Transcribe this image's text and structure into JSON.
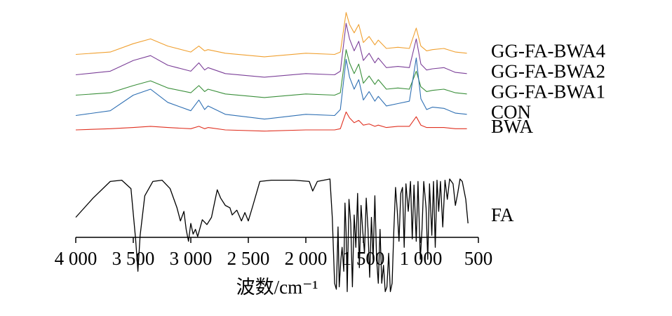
{
  "chart_data": {
    "type": "line",
    "title": "",
    "xlabel": "波数/cm⁻¹",
    "ylabel": "",
    "xlim": [
      4000,
      500
    ],
    "x_reversed": true,
    "y_stacked_offset": true,
    "grid": false,
    "legend": "labels-right-of-curves",
    "ticks": [
      "4 000",
      "3 500",
      "3 000",
      "2 500",
      "2 000",
      "1 500",
      "1 000",
      "500"
    ],
    "tick_values": [
      4000,
      3500,
      3000,
      2500,
      2000,
      1500,
      1000,
      500
    ],
    "series": [
      {
        "name": "GG-FA-BWA4",
        "color": "#f0a030",
        "baseline": 0.78,
        "points": [
          [
            4000,
            0
          ],
          [
            3700,
            0.02
          ],
          [
            3500,
            0.09
          ],
          [
            3350,
            0.13
          ],
          [
            3200,
            0.07
          ],
          [
            3000,
            0.02
          ],
          [
            2930,
            0.07
          ],
          [
            2880,
            0.03
          ],
          [
            2850,
            0.04
          ],
          [
            2700,
            0.01
          ],
          [
            2360,
            -0.02
          ],
          [
            2000,
            0.01
          ],
          [
            1750,
            0.0
          ],
          [
            1700,
            0.02
          ],
          [
            1650,
            0.35
          ],
          [
            1620,
            0.25
          ],
          [
            1580,
            0.18
          ],
          [
            1540,
            0.25
          ],
          [
            1500,
            0.1
          ],
          [
            1450,
            0.15
          ],
          [
            1400,
            0.08
          ],
          [
            1370,
            0.12
          ],
          [
            1300,
            0.05
          ],
          [
            1200,
            0.06
          ],
          [
            1100,
            0.05
          ],
          [
            1040,
            0.22
          ],
          [
            1000,
            0.07
          ],
          [
            950,
            0.03
          ],
          [
            900,
            0.04
          ],
          [
            800,
            0.05
          ],
          [
            700,
            0.02
          ],
          [
            600,
            0.01
          ]
        ]
      },
      {
        "name": "GG-FA-BWA2",
        "color": "#7b3f98",
        "baseline": 0.61,
        "points": [
          [
            4000,
            0
          ],
          [
            3700,
            0.03
          ],
          [
            3500,
            0.12
          ],
          [
            3350,
            0.16
          ],
          [
            3200,
            0.08
          ],
          [
            3000,
            0.03
          ],
          [
            2930,
            0.1
          ],
          [
            2880,
            0.04
          ],
          [
            2850,
            0.06
          ],
          [
            2700,
            0.01
          ],
          [
            2360,
            -0.02
          ],
          [
            2000,
            0.01
          ],
          [
            1750,
            0.0
          ],
          [
            1700,
            0.03
          ],
          [
            1650,
            0.43
          ],
          [
            1620,
            0.3
          ],
          [
            1580,
            0.2
          ],
          [
            1540,
            0.28
          ],
          [
            1500,
            0.12
          ],
          [
            1450,
            0.18
          ],
          [
            1400,
            0.1
          ],
          [
            1370,
            0.14
          ],
          [
            1300,
            0.06
          ],
          [
            1200,
            0.07
          ],
          [
            1100,
            0.06
          ],
          [
            1040,
            0.3
          ],
          [
            1000,
            0.09
          ],
          [
            950,
            0.04
          ],
          [
            900,
            0.05
          ],
          [
            800,
            0.06
          ],
          [
            700,
            0.02
          ],
          [
            600,
            0.01
          ]
        ]
      },
      {
        "name": "GG-FA-BWA1",
        "color": "#3a8f3a",
        "baseline": 0.44,
        "points": [
          [
            4000,
            0
          ],
          [
            3700,
            0.02
          ],
          [
            3500,
            0.08
          ],
          [
            3350,
            0.12
          ],
          [
            3200,
            0.06
          ],
          [
            3000,
            0.02
          ],
          [
            2930,
            0.08
          ],
          [
            2880,
            0.03
          ],
          [
            2850,
            0.05
          ],
          [
            2700,
            0.01
          ],
          [
            2360,
            -0.02
          ],
          [
            2000,
            0.01
          ],
          [
            1750,
            0.0
          ],
          [
            1700,
            0.02
          ],
          [
            1650,
            0.38
          ],
          [
            1620,
            0.27
          ],
          [
            1580,
            0.18
          ],
          [
            1540,
            0.26
          ],
          [
            1500,
            0.1
          ],
          [
            1450,
            0.16
          ],
          [
            1400,
            0.09
          ],
          [
            1370,
            0.13
          ],
          [
            1300,
            0.05
          ],
          [
            1200,
            0.06
          ],
          [
            1100,
            0.05
          ],
          [
            1040,
            0.2
          ],
          [
            1000,
            0.07
          ],
          [
            950,
            0.03
          ],
          [
            900,
            0.04
          ],
          [
            800,
            0.05
          ],
          [
            700,
            0.02
          ],
          [
            600,
            0.01
          ]
        ]
      },
      {
        "name": "CON",
        "color": "#2e6fb3",
        "baseline": 0.27,
        "points": [
          [
            4000,
            0
          ],
          [
            3700,
            0.04
          ],
          [
            3500,
            0.17
          ],
          [
            3350,
            0.22
          ],
          [
            3200,
            0.11
          ],
          [
            3000,
            0.04
          ],
          [
            2930,
            0.13
          ],
          [
            2880,
            0.05
          ],
          [
            2850,
            0.08
          ],
          [
            2700,
            0.01
          ],
          [
            2360,
            -0.03
          ],
          [
            2000,
            0.01
          ],
          [
            1750,
            0.0
          ],
          [
            1700,
            0.05
          ],
          [
            1650,
            0.47
          ],
          [
            1620,
            0.32
          ],
          [
            1580,
            0.22
          ],
          [
            1540,
            0.3
          ],
          [
            1500,
            0.13
          ],
          [
            1450,
            0.2
          ],
          [
            1400,
            0.12
          ],
          [
            1370,
            0.16
          ],
          [
            1300,
            0.08
          ],
          [
            1200,
            0.1
          ],
          [
            1100,
            0.12
          ],
          [
            1040,
            0.48
          ],
          [
            1000,
            0.14
          ],
          [
            950,
            0.05
          ],
          [
            900,
            0.07
          ],
          [
            800,
            0.06
          ],
          [
            700,
            0.02
          ],
          [
            600,
            0.01
          ]
        ]
      },
      {
        "name": "BWA",
        "color": "#e03020",
        "baseline": 0.15,
        "points": [
          [
            4000,
            0
          ],
          [
            3700,
            0.01
          ],
          [
            3500,
            0.02
          ],
          [
            3350,
            0.03
          ],
          [
            3200,
            0.02
          ],
          [
            3000,
            0.01
          ],
          [
            2930,
            0.03
          ],
          [
            2880,
            0.01
          ],
          [
            2850,
            0.02
          ],
          [
            2700,
            0.0
          ],
          [
            2360,
            -0.01
          ],
          [
            2000,
            0.0
          ],
          [
            1750,
            0.0
          ],
          [
            1700,
            0.01
          ],
          [
            1650,
            0.15
          ],
          [
            1620,
            0.1
          ],
          [
            1580,
            0.06
          ],
          [
            1540,
            0.08
          ],
          [
            1500,
            0.04
          ],
          [
            1450,
            0.05
          ],
          [
            1400,
            0.03
          ],
          [
            1370,
            0.04
          ],
          [
            1300,
            0.02
          ],
          [
            1200,
            0.03
          ],
          [
            1100,
            0.03
          ],
          [
            1040,
            0.11
          ],
          [
            1000,
            0.04
          ],
          [
            950,
            0.02
          ],
          [
            900,
            0.02
          ],
          [
            800,
            0.02
          ],
          [
            700,
            0.01
          ],
          [
            600,
            0.01
          ]
        ]
      },
      {
        "name": "FA",
        "color": "#000000",
        "baseline": -0.58,
        "points": [
          [
            4000,
            0.0
          ],
          [
            3850,
            0.16
          ],
          [
            3700,
            0.3
          ],
          [
            3600,
            0.31
          ],
          [
            3520,
            0.24
          ],
          [
            3480,
            -0.18
          ],
          [
            3460,
            -0.45
          ],
          [
            3440,
            -0.15
          ],
          [
            3400,
            0.18
          ],
          [
            3330,
            0.3
          ],
          [
            3250,
            0.31
          ],
          [
            3180,
            0.24
          ],
          [
            3120,
            0.08
          ],
          [
            3090,
            -0.03
          ],
          [
            3060,
            0.05
          ],
          [
            3040,
            -0.1
          ],
          [
            3020,
            -0.2
          ],
          [
            3000,
            -0.05
          ],
          [
            2980,
            -0.14
          ],
          [
            2960,
            -0.1
          ],
          [
            2940,
            -0.16
          ],
          [
            2900,
            -0.02
          ],
          [
            2860,
            -0.06
          ],
          [
            2820,
            0.0
          ],
          [
            2770,
            0.23
          ],
          [
            2740,
            0.16
          ],
          [
            2700,
            0.1
          ],
          [
            2660,
            0.08
          ],
          [
            2640,
            0.02
          ],
          [
            2600,
            0.06
          ],
          [
            2560,
            -0.03
          ],
          [
            2530,
            0.04
          ],
          [
            2500,
            -0.03
          ],
          [
            2460,
            0.1
          ],
          [
            2400,
            0.3
          ],
          [
            2300,
            0.31
          ],
          [
            2100,
            0.31
          ],
          [
            1970,
            0.3
          ],
          [
            1940,
            0.22
          ],
          [
            1900,
            0.3
          ],
          [
            1790,
            0.32
          ],
          [
            1770,
            0.0
          ],
          [
            1750,
            -0.55
          ],
          [
            1735,
            -0.6
          ],
          [
            1720,
            -0.08
          ],
          [
            1710,
            -0.58
          ],
          [
            1695,
            -0.35
          ],
          [
            1685,
            -0.25
          ],
          [
            1670,
            -0.45
          ],
          [
            1660,
            0.12
          ],
          [
            1650,
            -0.12
          ],
          [
            1640,
            -0.62
          ],
          [
            1625,
            0.15
          ],
          [
            1610,
            -0.05
          ],
          [
            1595,
            -0.58
          ],
          [
            1580,
            0.02
          ],
          [
            1565,
            -0.25
          ],
          [
            1550,
            0.2
          ],
          [
            1535,
            -0.42
          ],
          [
            1520,
            0.1
          ],
          [
            1505,
            -0.12
          ],
          [
            1490,
            -0.3
          ],
          [
            1475,
            0.16
          ],
          [
            1460,
            -0.1
          ],
          [
            1445,
            -0.5
          ],
          [
            1430,
            0.0
          ],
          [
            1415,
            -0.35
          ],
          [
            1400,
            0.18
          ],
          [
            1385,
            -0.35
          ],
          [
            1370,
            -0.55
          ],
          [
            1355,
            -0.1
          ],
          [
            1340,
            -0.55
          ],
          [
            1325,
            -0.4
          ],
          [
            1310,
            -0.62
          ],
          [
            1295,
            -0.58
          ],
          [
            1280,
            -0.3
          ],
          [
            1265,
            -0.62
          ],
          [
            1250,
            -0.55
          ],
          [
            1235,
            -0.1
          ],
          [
            1220,
            0.25
          ],
          [
            1205,
            0.05
          ],
          [
            1190,
            -0.2
          ],
          [
            1175,
            0.2
          ],
          [
            1160,
            0.25
          ],
          [
            1145,
            -0.25
          ],
          [
            1130,
            0.28
          ],
          [
            1110,
            0.05
          ],
          [
            1090,
            0.3
          ],
          [
            1075,
            -0.18
          ],
          [
            1060,
            0.27
          ],
          [
            1040,
            -0.2
          ],
          [
            1025,
            0.3
          ],
          [
            1005,
            -0.35
          ],
          [
            990,
            -0.1
          ],
          [
            975,
            0.3
          ],
          [
            955,
            0.08
          ],
          [
            940,
            -0.35
          ],
          [
            925,
            0.28
          ],
          [
            905,
            -0.15
          ],
          [
            890,
            0.3
          ],
          [
            875,
            -0.25
          ],
          [
            860,
            0.31
          ],
          [
            845,
            0.05
          ],
          [
            830,
            0.3
          ],
          [
            810,
            -0.08
          ],
          [
            790,
            0.31
          ],
          [
            770,
            0.15
          ],
          [
            750,
            0.32
          ],
          [
            720,
            0.28
          ],
          [
            700,
            0.1
          ],
          [
            680,
            0.2
          ],
          [
            660,
            0.32
          ],
          [
            640,
            0.3
          ],
          [
            610,
            0.15
          ],
          [
            590,
            -0.05
          ]
        ]
      }
    ]
  }
}
